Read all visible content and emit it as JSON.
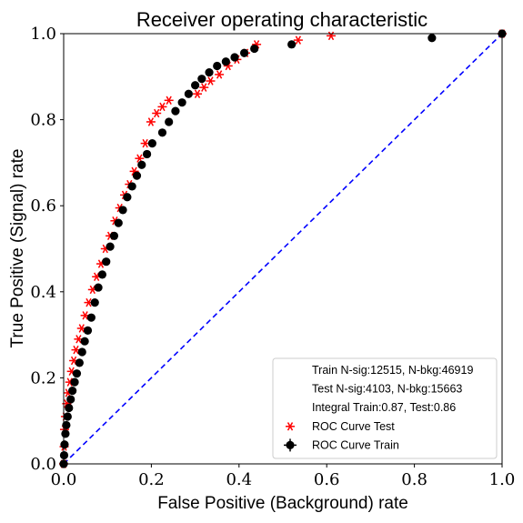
{
  "chart_data": {
    "type": "scatter",
    "title": "Receiver operating characteristic",
    "xlabel": "False Positive (Background) rate",
    "ylabel": "True Positive (Signal) rate",
    "xlim": [
      0.0,
      1.0
    ],
    "ylim": [
      0.0,
      1.0
    ],
    "xticks": [
      "0.0",
      "0.2",
      "0.4",
      "0.6",
      "0.8",
      "1.0"
    ],
    "yticks": [
      "0.0",
      "0.2",
      "0.4",
      "0.6",
      "0.8",
      "1.0"
    ],
    "grid": false,
    "legend_position": "lower-right",
    "legend_notes": [
      "Train N-sig:12515, N-bkg:46919",
      "Test N-sig:4103, N-bkg:15663",
      "Integral Train:0.87, Test:0.86"
    ],
    "reference_line": {
      "x": [
        0.0,
        1.0
      ],
      "y": [
        0.0,
        1.0
      ],
      "color": "#0000ff",
      "style": "dashed"
    },
    "series": [
      {
        "name": "ROC Curve Test",
        "marker": "asterisk",
        "color": "#ff0000",
        "x": [
          0.0,
          0.001,
          0.002,
          0.004,
          0.007,
          0.01,
          0.014,
          0.018,
          0.023,
          0.028,
          0.034,
          0.041,
          0.049,
          0.057,
          0.066,
          0.075,
          0.085,
          0.095,
          0.106,
          0.117,
          0.128,
          0.139,
          0.15,
          0.161,
          0.173,
          0.186,
          0.199,
          0.212,
          0.225,
          0.24,
          0.305,
          0.32,
          0.335,
          0.355,
          0.375,
          0.395,
          0.415,
          0.44,
          0.535,
          0.61,
          1.0
        ],
        "y": [
          0.0,
          0.04,
          0.08,
          0.11,
          0.14,
          0.165,
          0.19,
          0.215,
          0.24,
          0.265,
          0.29,
          0.315,
          0.345,
          0.375,
          0.405,
          0.435,
          0.465,
          0.5,
          0.53,
          0.565,
          0.595,
          0.625,
          0.65,
          0.68,
          0.71,
          0.745,
          0.795,
          0.815,
          0.83,
          0.845,
          0.86,
          0.875,
          0.89,
          0.905,
          0.925,
          0.94,
          0.955,
          0.975,
          0.985,
          0.995,
          1.0
        ]
      },
      {
        "name": "ROC Curve Train",
        "marker": "circle",
        "color": "#000000",
        "x": [
          0.0,
          0.001,
          0.002,
          0.004,
          0.006,
          0.009,
          0.012,
          0.016,
          0.02,
          0.025,
          0.03,
          0.036,
          0.042,
          0.048,
          0.055,
          0.063,
          0.071,
          0.079,
          0.088,
          0.097,
          0.106,
          0.115,
          0.125,
          0.135,
          0.145,
          0.156,
          0.167,
          0.178,
          0.19,
          0.202,
          0.225,
          0.24,
          0.255,
          0.27,
          0.285,
          0.3,
          0.315,
          0.332,
          0.35,
          0.37,
          0.39,
          0.412,
          0.435,
          0.52,
          0.84,
          1.0
        ],
        "y": [
          0.0,
          0.02,
          0.045,
          0.07,
          0.09,
          0.11,
          0.13,
          0.15,
          0.17,
          0.19,
          0.21,
          0.235,
          0.26,
          0.285,
          0.31,
          0.34,
          0.375,
          0.41,
          0.44,
          0.47,
          0.505,
          0.53,
          0.56,
          0.59,
          0.62,
          0.645,
          0.67,
          0.695,
          0.72,
          0.745,
          0.77,
          0.795,
          0.82,
          0.84,
          0.86,
          0.88,
          0.895,
          0.91,
          0.925,
          0.935,
          0.945,
          0.955,
          0.965,
          0.975,
          0.99,
          1.0
        ]
      }
    ]
  }
}
